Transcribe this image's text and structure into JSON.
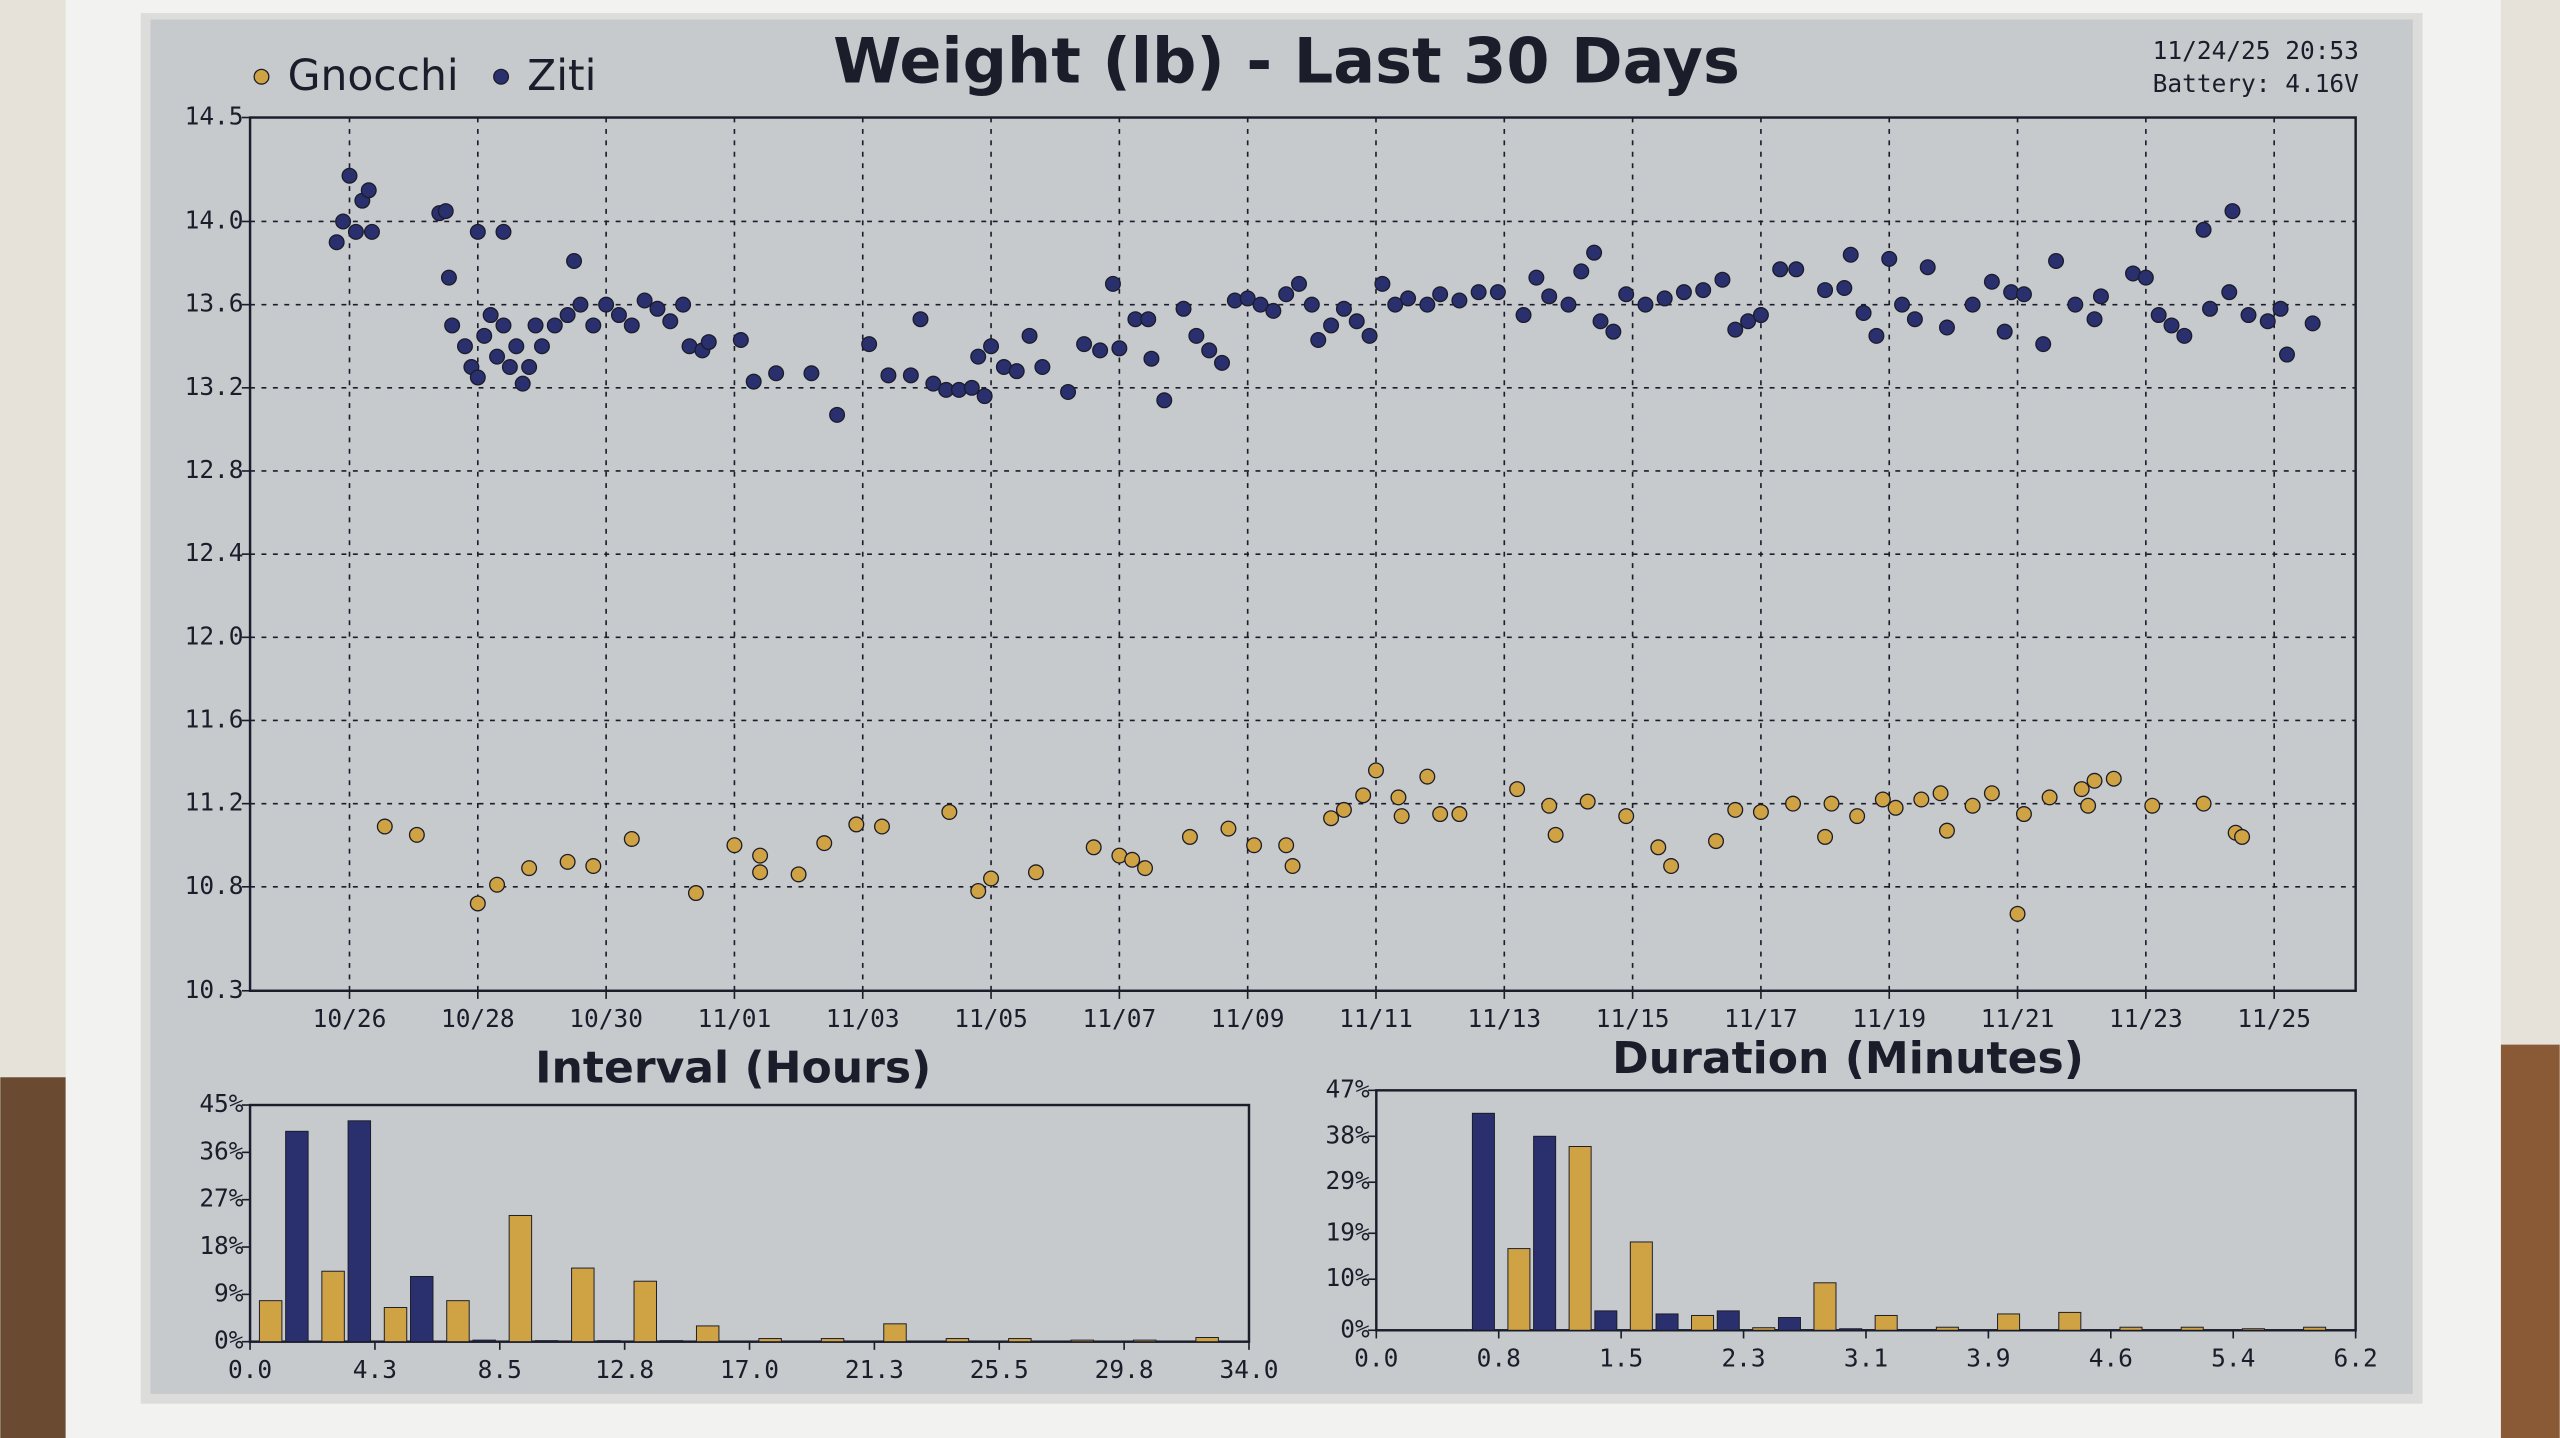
{
  "status": {
    "timestamp": "11/24/25 20:53",
    "battery": "Battery: 4.16V"
  },
  "chart_data": [
    {
      "type": "scatter",
      "title": "Weight (lb) - Last 30 Days",
      "grid": true,
      "legend": "top-left",
      "xlim": [
        24.45,
        57.27
      ],
      "xticks": [
        {
          "value": 26,
          "label": "10/26"
        },
        {
          "value": 28,
          "label": "10/28"
        },
        {
          "value": 30,
          "label": "10/30"
        },
        {
          "value": 32,
          "label": "11/01"
        },
        {
          "value": 34,
          "label": "11/03"
        },
        {
          "value": 36,
          "label": "11/05"
        },
        {
          "value": 38,
          "label": "11/07"
        },
        {
          "value": 40,
          "label": "11/09"
        },
        {
          "value": 42,
          "label": "11/11"
        },
        {
          "value": 44,
          "label": "11/13"
        },
        {
          "value": 46,
          "label": "11/15"
        },
        {
          "value": 48,
          "label": "11/17"
        },
        {
          "value": 50,
          "label": "11/19"
        },
        {
          "value": 52,
          "label": "11/21"
        },
        {
          "value": 54,
          "label": "11/23"
        },
        {
          "value": 56,
          "label": "11/25"
        }
      ],
      "ylim": [
        10.3,
        14.5
      ],
      "yticks": [
        10.3,
        10.8,
        {
          "value": 11.2,
          "label": "11.2"
        },
        11.6,
        {
          "value": 12,
          "label": "12.0"
        },
        12.4,
        12.8,
        13.2,
        13.6,
        {
          "value": 14,
          "label": "14.0"
        },
        14.5
      ],
      "series": [
        {
          "name": "Gnocchi",
          "color": "#cfa244",
          "x": [
            26.55,
            27.05,
            28.0,
            28.3,
            28.8,
            29.4,
            29.8,
            30.4,
            31.4,
            32.0,
            32.4,
            32.4,
            33.0,
            33.4,
            33.9,
            34.3,
            35.35,
            35.8,
            36.0,
            36.7,
            37.6,
            38.0,
            38.2,
            38.4,
            39.1,
            39.7,
            40.1,
            40.6,
            40.7,
            41.3,
            41.5,
            41.8,
            42.0,
            42.35,
            42.4,
            42.8,
            43.0,
            43.3,
            44.2,
            44.7,
            44.8,
            45.3,
            45.9,
            46.4,
            46.6,
            47.3,
            47.6,
            48.0,
            48.5,
            49.0,
            49.1,
            49.5,
            49.9,
            50.1,
            50.5,
            50.8,
            50.9,
            51.3,
            51.6,
            52.0,
            52.1,
            52.5,
            53.0,
            53.1,
            53.2,
            53.5,
            54.1,
            54.9,
            55.4,
            55.5
          ],
          "values": [
            11.09,
            11.05,
            10.72,
            10.81,
            10.89,
            10.92,
            10.9,
            11.03,
            10.77,
            11.0,
            10.95,
            10.87,
            10.86,
            11.01,
            11.1,
            11.09,
            11.16,
            10.78,
            10.84,
            10.87,
            10.99,
            10.95,
            10.93,
            10.89,
            11.04,
            11.08,
            11.0,
            11.0,
            10.9,
            11.13,
            11.17,
            11.24,
            11.36,
            11.23,
            11.14,
            11.33,
            11.15,
            11.15,
            11.27,
            11.19,
            11.05,
            11.21,
            11.14,
            10.99,
            10.9,
            11.02,
            11.17,
            11.16,
            11.2,
            11.04,
            11.2,
            11.14,
            11.22,
            11.18,
            11.22,
            11.25,
            11.07,
            11.19,
            11.25,
            10.67,
            11.15,
            11.23,
            11.27,
            11.19,
            11.31,
            11.32,
            11.19,
            11.2,
            11.06,
            11.04
          ]
        },
        {
          "name": "Ziti",
          "color": "#2a2f6e",
          "x": [
            25.8,
            25.9,
            26.0,
            26.1,
            26.2,
            26.3,
            26.35,
            27.4,
            27.5,
            27.55,
            27.6,
            27.8,
            27.9,
            28.0,
            28.0,
            28.1,
            28.2,
            28.3,
            28.4,
            28.4,
            28.5,
            28.6,
            28.7,
            28.8,
            28.9,
            29.0,
            29.2,
            29.4,
            29.5,
            29.6,
            29.8,
            30.0,
            30.2,
            30.4,
            30.6,
            30.8,
            31.0,
            31.2,
            31.3,
            31.5,
            31.6,
            32.1,
            32.3,
            32.65,
            33.2,
            33.6,
            34.1,
            34.4,
            34.75,
            34.9,
            35.1,
            35.3,
            35.5,
            35.7,
            35.8,
            35.9,
            36.0,
            36.2,
            36.4,
            36.6,
            36.8,
            37.2,
            37.45,
            37.7,
            37.9,
            38.0,
            38.25,
            38.45,
            38.5,
            38.7,
            39.0,
            39.2,
            39.4,
            39.6,
            39.8,
            40.0,
            40.2,
            40.4,
            40.6,
            40.8,
            41.0,
            41.1,
            41.3,
            41.5,
            41.7,
            41.9,
            42.1,
            42.3,
            42.5,
            42.8,
            43.0,
            43.3,
            43.6,
            43.9,
            44.3,
            44.5,
            44.7,
            45.0,
            45.2,
            45.4,
            45.5,
            45.7,
            45.9,
            46.2,
            46.5,
            46.8,
            47.1,
            47.4,
            47.6,
            47.8,
            48.0,
            48.3,
            48.55,
            49.0,
            49.3,
            49.4,
            49.6,
            49.8,
            50.0,
            50.2,
            50.4,
            50.6,
            50.9,
            51.3,
            51.6,
            51.8,
            51.9,
            52.1,
            52.4,
            52.6,
            52.9,
            53.2,
            53.3,
            53.8,
            54.0,
            54.2,
            54.4,
            54.6,
            54.9,
            55.0,
            55.3,
            55.35,
            55.6,
            55.9,
            56.1,
            56.2,
            56.6
          ],
          "values": [
            13.9,
            14.0,
            14.22,
            13.95,
            14.1,
            14.15,
            13.95,
            14.04,
            14.05,
            13.73,
            13.5,
            13.4,
            13.3,
            13.25,
            13.95,
            13.45,
            13.55,
            13.35,
            13.5,
            13.95,
            13.3,
            13.4,
            13.22,
            13.3,
            13.5,
            13.4,
            13.5,
            13.55,
            13.81,
            13.6,
            13.5,
            13.6,
            13.55,
            13.5,
            13.62,
            13.58,
            13.52,
            13.6,
            13.4,
            13.38,
            13.42,
            13.43,
            13.23,
            13.27,
            13.27,
            13.07,
            13.41,
            13.26,
            13.26,
            13.53,
            13.22,
            13.19,
            13.19,
            13.2,
            13.35,
            13.16,
            13.4,
            13.3,
            13.28,
            13.45,
            13.3,
            13.18,
            13.41,
            13.38,
            13.7,
            13.39,
            13.53,
            13.53,
            13.34,
            13.14,
            13.58,
            13.45,
            13.38,
            13.32,
            13.62,
            13.63,
            13.6,
            13.57,
            13.65,
            13.7,
            13.6,
            13.43,
            13.5,
            13.58,
            13.52,
            13.45,
            13.7,
            13.6,
            13.63,
            13.6,
            13.65,
            13.62,
            13.66,
            13.66,
            13.55,
            13.73,
            13.64,
            13.6,
            13.76,
            13.85,
            13.52,
            13.47,
            13.65,
            13.6,
            13.63,
            13.66,
            13.67,
            13.72,
            13.48,
            13.52,
            13.55,
            13.77,
            13.77,
            13.67,
            13.68,
            13.84,
            13.56,
            13.45,
            13.82,
            13.6,
            13.53,
            13.78,
            13.49,
            13.6,
            13.71,
            13.47,
            13.66,
            13.65,
            13.41,
            13.81,
            13.6,
            13.53,
            13.64,
            13.75,
            13.73,
            13.55,
            13.5,
            13.45,
            13.96,
            13.58,
            13.66,
            14.05,
            13.55,
            13.52,
            13.58,
            13.36,
            13.51
          ]
        }
      ]
    },
    {
      "type": "histogram",
      "title": "Interval (Hours)",
      "grid": false,
      "bins": [
        0,
        2.125,
        4.25,
        6.375,
        8.5,
        10.625,
        12.75,
        14.875,
        17,
        19.125,
        21.25,
        23.375,
        25.5,
        27.625,
        29.75,
        31.875,
        34
      ],
      "xlim": [
        0,
        34
      ],
      "xticks": [
        {
          "value": 0,
          "label": "0.0"
        },
        {
          "value": 4.25,
          "label": "4.3"
        },
        {
          "value": 8.5,
          "label": "8.5"
        },
        {
          "value": 12.75,
          "label": "12.8"
        },
        {
          "value": 17,
          "label": "17.0"
        },
        {
          "value": 21.25,
          "label": "21.3"
        },
        {
          "value": 25.5,
          "label": "25.5"
        },
        {
          "value": 29.75,
          "label": "29.8"
        },
        {
          "value": 34,
          "label": "34.0"
        }
      ],
      "ylim": [
        0,
        45
      ],
      "yticks": [
        {
          "value": 0,
          "label": "0%"
        },
        {
          "value": 9,
          "label": "9%"
        },
        {
          "value": 18,
          "label": "18%"
        },
        {
          "value": 27,
          "label": "27%"
        },
        {
          "value": 36,
          "label": "36%"
        },
        {
          "value": 45,
          "label": "45%"
        }
      ],
      "series": [
        {
          "color": "#cfa244",
          "values": [
            7.8,
            13.4,
            6.5,
            7.8,
            24,
            14,
            11.5,
            3,
            0.6,
            0.6,
            3.4,
            0.6,
            0.6,
            0.3,
            0.3,
            0.8
          ]
        },
        {
          "color": "#2a2f6e",
          "values": [
            40,
            42,
            12.4,
            0.3,
            0.2,
            0.2,
            0.2,
            0,
            0,
            0,
            0,
            0,
            0,
            0,
            0,
            0
          ]
        }
      ]
    },
    {
      "type": "histogram",
      "title": "Duration (Minutes)",
      "grid": false,
      "bins": [
        0,
        0.3875,
        0.775,
        1.1625,
        1.55,
        1.9375,
        2.325,
        2.7125,
        3.1,
        3.4875,
        3.875,
        4.2625,
        4.65,
        5.0375,
        5.425,
        5.8125,
        6.2
      ],
      "xlim": [
        0,
        6.2
      ],
      "xticks": [
        {
          "value": 0,
          "label": "0.0"
        },
        {
          "value": 0.775,
          "label": "0.8"
        },
        {
          "value": 1.55,
          "label": "1.5"
        },
        {
          "value": 2.325,
          "label": "2.3"
        },
        3.1,
        {
          "value": 3.875,
          "label": "3.9"
        },
        {
          "value": 4.65,
          "label": "4.6"
        },
        {
          "value": 5.425,
          "label": "5.4"
        },
        6.2
      ],
      "ylim": [
        0,
        47
      ],
      "yticks": [
        {
          "value": 0,
          "label": "0%"
        },
        {
          "value": 10,
          "label": "10%"
        },
        {
          "value": 19,
          "label": "19%"
        },
        {
          "value": 29,
          "label": "29%"
        },
        {
          "value": 38,
          "label": "38%"
        },
        {
          "value": 47,
          "label": "47%"
        }
      ],
      "series": [
        {
          "color": "#cfa244",
          "values": [
            0,
            0,
            16,
            36,
            17.3,
            2.9,
            0.5,
            9.3,
            2.9,
            0.6,
            3.2,
            3.5,
            0.6,
            0.6,
            0.3,
            0.6
          ]
        },
        {
          "color": "#2a2f6e",
          "values": [
            0,
            42.5,
            38,
            3.8,
            3.2,
            3.8,
            2.5,
            0.3,
            0,
            0,
            0,
            0,
            0,
            0,
            0,
            0
          ]
        }
      ]
    }
  ]
}
